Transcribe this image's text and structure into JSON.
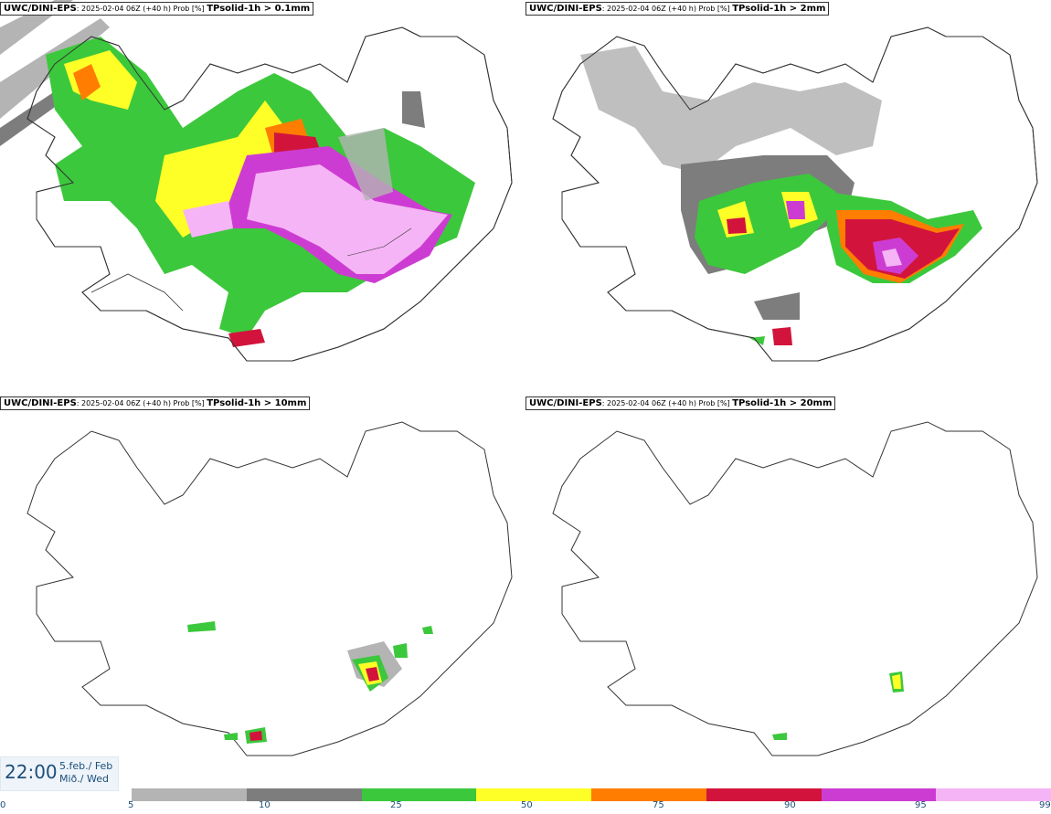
{
  "panels": [
    {
      "model": "UWC/DINI-EPS",
      "meta": ": 2025-02-04 06Z (+40 h) Prob [%] ",
      "param": "TPsolid-1h > 0.1mm"
    },
    {
      "model": "UWC/DINI-EPS",
      "meta": ": 2025-02-04 06Z (+40 h) Prob [%] ",
      "param": "TPsolid-1h > 2mm"
    },
    {
      "model": "UWC/DINI-EPS",
      "meta": ": 2025-02-04 06Z (+40 h) Prob [%] ",
      "param": "TPsolid-1h > 10mm"
    },
    {
      "model": "UWC/DINI-EPS",
      "meta": ": 2025-02-04 06Z (+40 h) Prob [%] ",
      "param": "TPsolid-1h > 20mm"
    }
  ],
  "valid_time": {
    "time": "22:00",
    "date_line1": "5.feb./ Feb",
    "date_line2": "Mið./ Wed"
  },
  "legend": {
    "ticks": [
      "0",
      "5",
      "10",
      "25",
      "50",
      "75",
      "90",
      "95",
      "99"
    ],
    "colors": [
      "#b4b4b4",
      "#7d7d7d",
      "#3cc83c",
      "#ffff28",
      "#ff7d00",
      "#d2143c",
      "#cd3cd2",
      "#f5b4f5"
    ]
  },
  "map_colors": {
    "gray_light": "#b4b4b4",
    "gray_dark": "#7d7d7d",
    "green": "#3cc83c",
    "yellow": "#ffff28",
    "orange": "#ff7d00",
    "red": "#d2143c",
    "magenta": "#cd3cd2",
    "pink": "#f5b4f5",
    "coast": "#333333"
  }
}
